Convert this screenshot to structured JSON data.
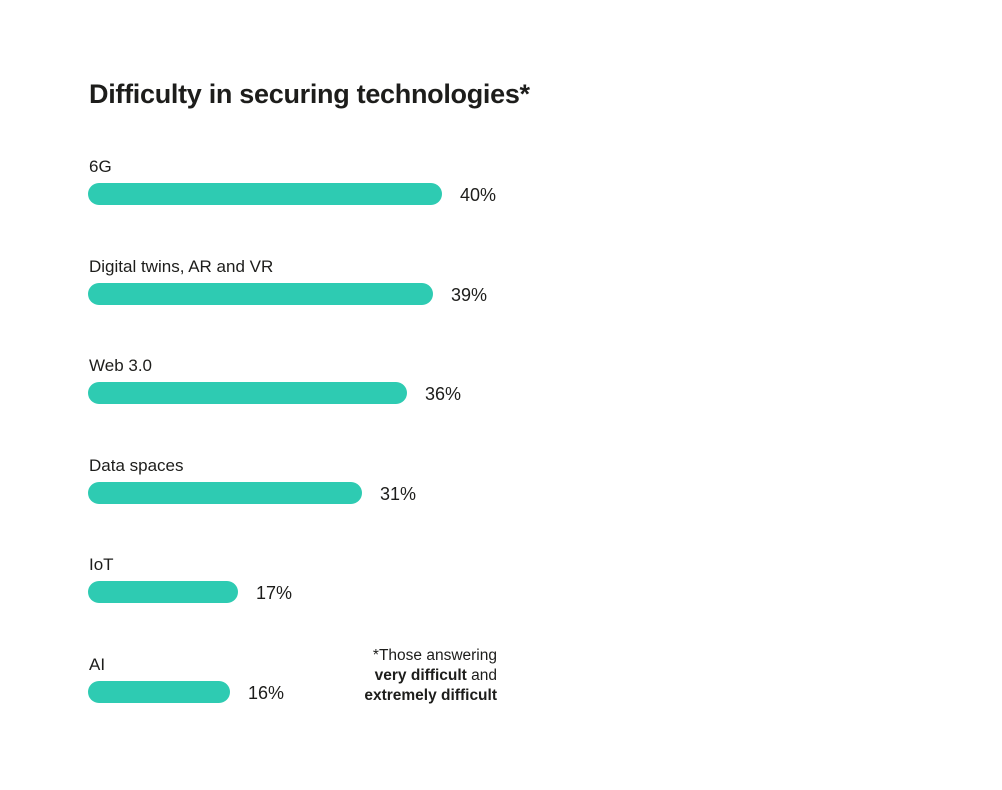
{
  "chart_data": {
    "type": "bar",
    "orientation": "horizontal",
    "title": "Difficulty in securing technologies*",
    "categories": [
      "6G",
      "Digital twins, AR and VR",
      "Web 3.0",
      "Data spaces",
      "IoT",
      "AI"
    ],
    "values": [
      40,
      39,
      36,
      31,
      17,
      16
    ],
    "value_labels": [
      "40%",
      "39%",
      "36%",
      "31%",
      "17%",
      "16%"
    ],
    "unit": "%",
    "xlabel": "",
    "ylabel": "",
    "grid": false,
    "bar_color": "#2ecbb2"
  },
  "footnote": {
    "line1": "*Those answering",
    "line2_bold": "very difficult",
    "line2_rest": " and",
    "line3_bold": "extremely difficult"
  }
}
